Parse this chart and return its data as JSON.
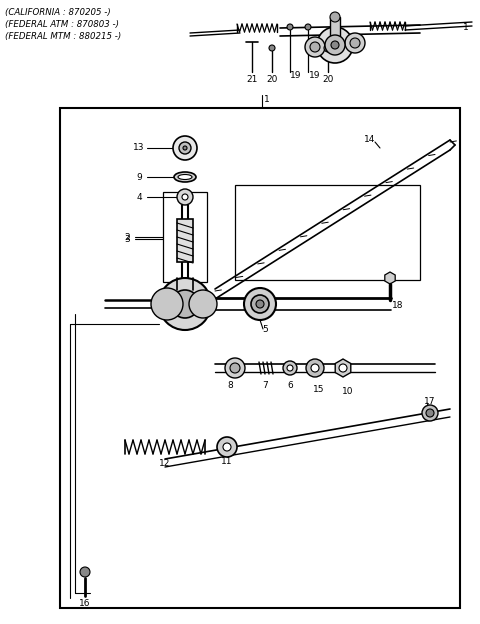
{
  "bg_color": "#ffffff",
  "text_color": "#111111",
  "header_lines": [
    "(CALIFORNIA : 870205 -)",
    "(FEDERAL ATM : 870803 -)",
    "(FEDERAL MTM : 880215 -)"
  ],
  "figsize": [
    4.8,
    6.24
  ],
  "dpi": 100
}
